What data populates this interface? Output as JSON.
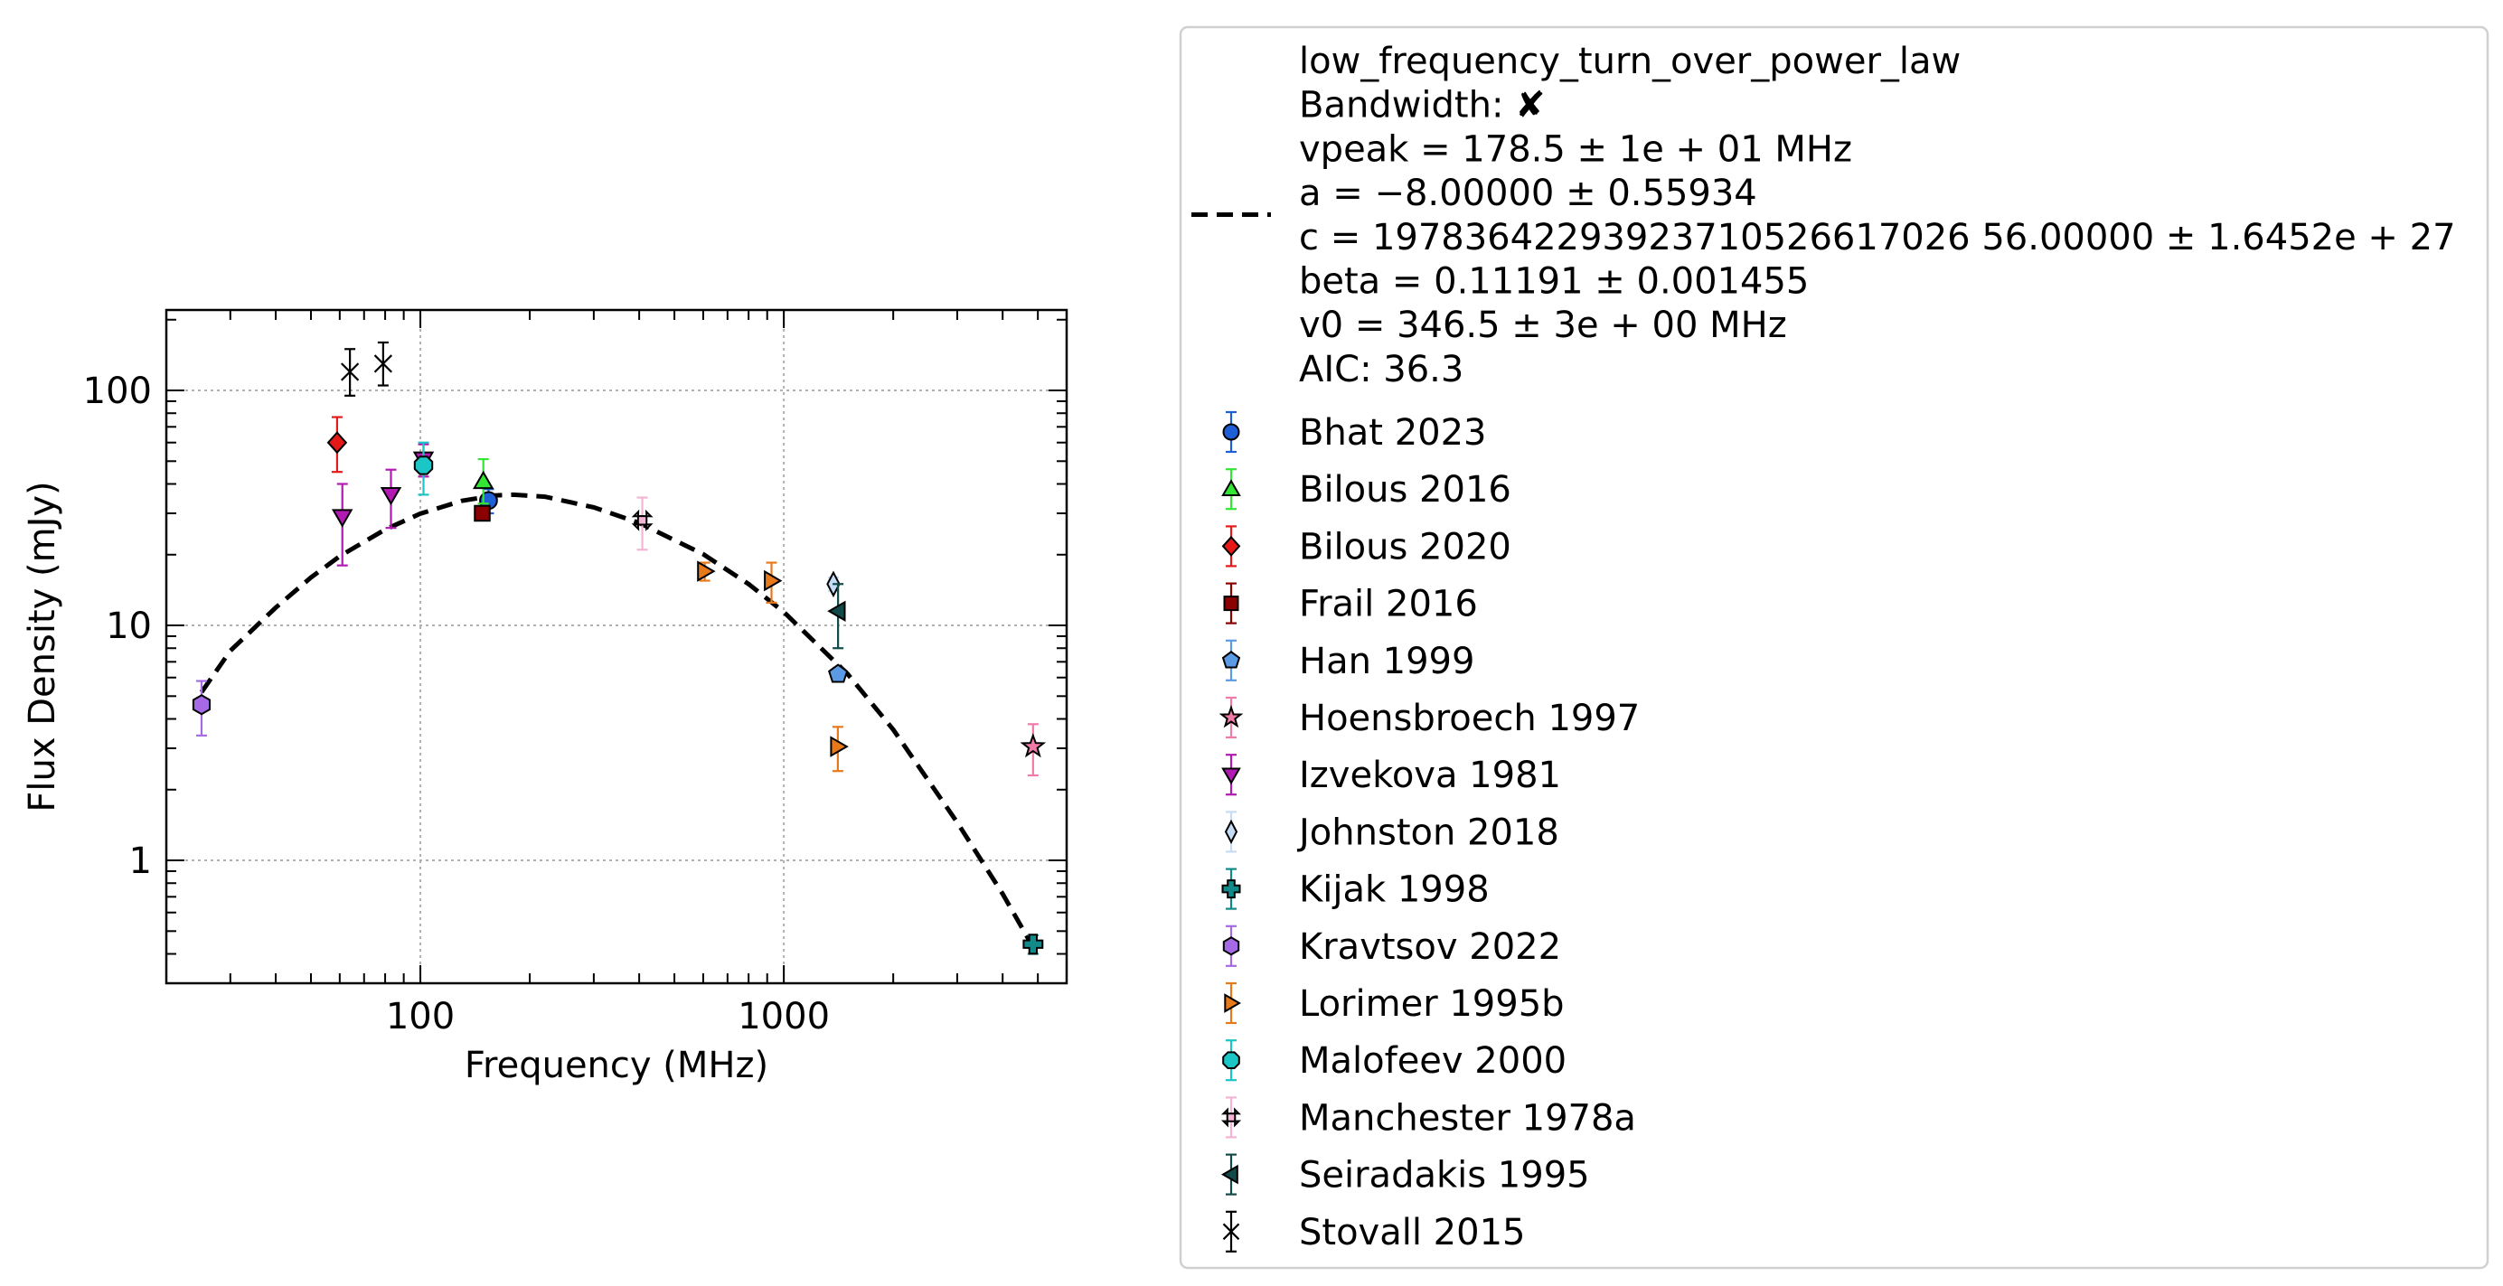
{
  "chart_data": {
    "type": "scatter",
    "title": "",
    "xlabel": "Frequency (MHz)",
    "ylabel": "Flux Density (mJy)",
    "xscale": "log",
    "yscale": "log",
    "xlim": [
      20,
      6000
    ],
    "ylim": [
      0.3,
      220
    ],
    "grid": true,
    "legend_position": "outside-right",
    "x_ticks": [
      {
        "value": 100,
        "label": "100"
      },
      {
        "value": 1000,
        "label": "1000"
      }
    ],
    "y_ticks": [
      {
        "value": 1,
        "label": "1"
      },
      {
        "value": 10,
        "label": "10"
      },
      {
        "value": 100,
        "label": "100"
      }
    ],
    "fit": {
      "name": "low_frequency_turn_over_power_law",
      "color": "#000000",
      "style": "dashed",
      "legend_lines": [
        "low_frequency_turn_over_power_law",
        "Bandwidth: ✘",
        "vpeak = 178.5 ± 1e + 01 MHz",
        "a = −8.00000 ± 0.55934",
        "c = 19783642293923710526617026 56.00000 ± 1.6452e + 27",
        "beta = 0.11191 ± 0.001455",
        "v0 = 346.5 ± 3e + 00 MHz",
        "AIC: 36.3"
      ],
      "curve": [
        [
          25,
          5.2
        ],
        [
          30,
          7.8
        ],
        [
          40,
          11.9
        ],
        [
          50,
          16.0
        ],
        [
          60,
          19.7
        ],
        [
          80,
          25.6
        ],
        [
          100,
          29.9
        ],
        [
          130,
          33.9
        ],
        [
          160,
          35.7
        ],
        [
          180,
          36.0
        ],
        [
          220,
          35.3
        ],
        [
          300,
          31.8
        ],
        [
          400,
          27.3
        ],
        [
          600,
          20.1
        ],
        [
          800,
          15.0
        ],
        [
          1000,
          11.4
        ],
        [
          1500,
          6.2
        ],
        [
          2000,
          3.6
        ],
        [
          3000,
          1.45
        ],
        [
          4000,
          0.72
        ],
        [
          4800,
          0.44
        ]
      ]
    },
    "series": [
      {
        "name": "Bhat 2023",
        "marker": "circle",
        "color": "#1f5fd6",
        "points": [
          {
            "x": 154,
            "y": 34,
            "yerr_lo": 4,
            "yerr_hi": 4
          }
        ]
      },
      {
        "name": "Bilous 2016",
        "marker": "triangle-up",
        "color": "#33e633",
        "points": [
          {
            "x": 149,
            "y": 41,
            "yerr_lo": 8,
            "yerr_hi": 10
          }
        ]
      },
      {
        "name": "Bilous 2020",
        "marker": "diamond",
        "color": "#e61919",
        "points": [
          {
            "x": 59,
            "y": 60,
            "yerr_lo": 15,
            "yerr_hi": 17
          }
        ]
      },
      {
        "name": "Frail 2016",
        "marker": "square",
        "color": "#8b0000",
        "points": [
          {
            "x": 148,
            "y": 30,
            "yerr_lo": 2,
            "yerr_hi": 2
          }
        ]
      },
      {
        "name": "Han 1999",
        "marker": "pentagon",
        "color": "#5b9be6",
        "points": [
          {
            "x": 1410,
            "y": 6.2,
            "yerr_lo": 0.4,
            "yerr_hi": 0.4
          }
        ]
      },
      {
        "name": "Hoensbroech 1997",
        "marker": "star",
        "color": "#f07aa8",
        "points": [
          {
            "x": 4850,
            "y": 3.05,
            "yerr_lo": 0.75,
            "yerr_hi": 0.75
          }
        ]
      },
      {
        "name": "Izvekova 1981",
        "marker": "triangle-down",
        "color": "#b31ab3",
        "points": [
          {
            "x": 61,
            "y": 29,
            "yerr_lo": 11,
            "yerr_hi": 11
          },
          {
            "x": 83,
            "y": 36,
            "yerr_lo": 10,
            "yerr_hi": 10
          },
          {
            "x": 102,
            "y": 51,
            "yerr_lo": 8,
            "yerr_hi": 8
          }
        ]
      },
      {
        "name": "Johnston 2018",
        "marker": "thin-diamond",
        "color": "#c6dcf4",
        "points": [
          {
            "x": 1369,
            "y": 15,
            "yerr_lo": 1,
            "yerr_hi": 1
          }
        ]
      },
      {
        "name": "Kijak 1998",
        "marker": "plus",
        "color": "#138a8a",
        "points": [
          {
            "x": 4850,
            "y": 0.44,
            "yerr_lo": 0.04,
            "yerr_hi": 0.04
          }
        ]
      },
      {
        "name": "Kravtsov 2022",
        "marker": "hexagon",
        "color": "#a66ae6",
        "points": [
          {
            "x": 25,
            "y": 4.6,
            "yerr_lo": 1.2,
            "yerr_hi": 1.2
          }
        ]
      },
      {
        "name": "Lorimer 1995b",
        "marker": "triangle-right",
        "color": "#e6791a",
        "points": [
          {
            "x": 606,
            "y": 17,
            "yerr_lo": 1.5,
            "yerr_hi": 1.5
          },
          {
            "x": 925,
            "y": 15.5,
            "yerr_lo": 3,
            "yerr_hi": 3
          },
          {
            "x": 1408,
            "y": 3.05,
            "yerr_lo": 0.65,
            "yerr_hi": 0.65
          }
        ]
      },
      {
        "name": "Malofeev 2000",
        "marker": "octagon",
        "color": "#1ac6c6",
        "points": [
          {
            "x": 102,
            "y": 48,
            "yerr_lo": 12,
            "yerr_hi": 12
          }
        ]
      },
      {
        "name": "Manchester 1978a",
        "marker": "x-filled",
        "color": "#f4b4d4",
        "points": [
          {
            "x": 408,
            "y": 28,
            "yerr_lo": 7,
            "yerr_hi": 7
          }
        ]
      },
      {
        "name": "Seiradakis 1995",
        "marker": "triangle-left",
        "color": "#124a4a",
        "points": [
          {
            "x": 1410,
            "y": 11.5,
            "yerr_lo": 3.5,
            "yerr_hi": 3.5
          }
        ]
      },
      {
        "name": "Stovall 2015",
        "marker": "x",
        "color": "#000000",
        "points": [
          {
            "x": 64,
            "y": 120,
            "yerr_lo": 25,
            "yerr_hi": 30
          },
          {
            "x": 79,
            "y": 130,
            "yerr_lo": 25,
            "yerr_hi": 30
          }
        ]
      }
    ]
  }
}
